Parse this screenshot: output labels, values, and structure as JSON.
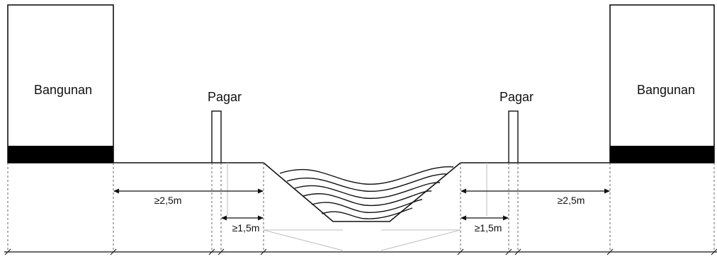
{
  "labels": {
    "building_left": "Bangunan",
    "building_right": "Bangunan",
    "fence_left": "Pagar",
    "fence_right": "Pagar",
    "dim_building_to_channel_left": "≥2,5m",
    "dim_building_to_channel_right": "≥2,5m",
    "dim_fence_to_channel_left": "≥1,5m",
    "dim_fence_to_channel_right": "≥1,5m"
  },
  "colors": {
    "ink": "#111111",
    "dashed": "#666666",
    "thin": "#bdbdbd",
    "foundation": "#000000"
  }
}
